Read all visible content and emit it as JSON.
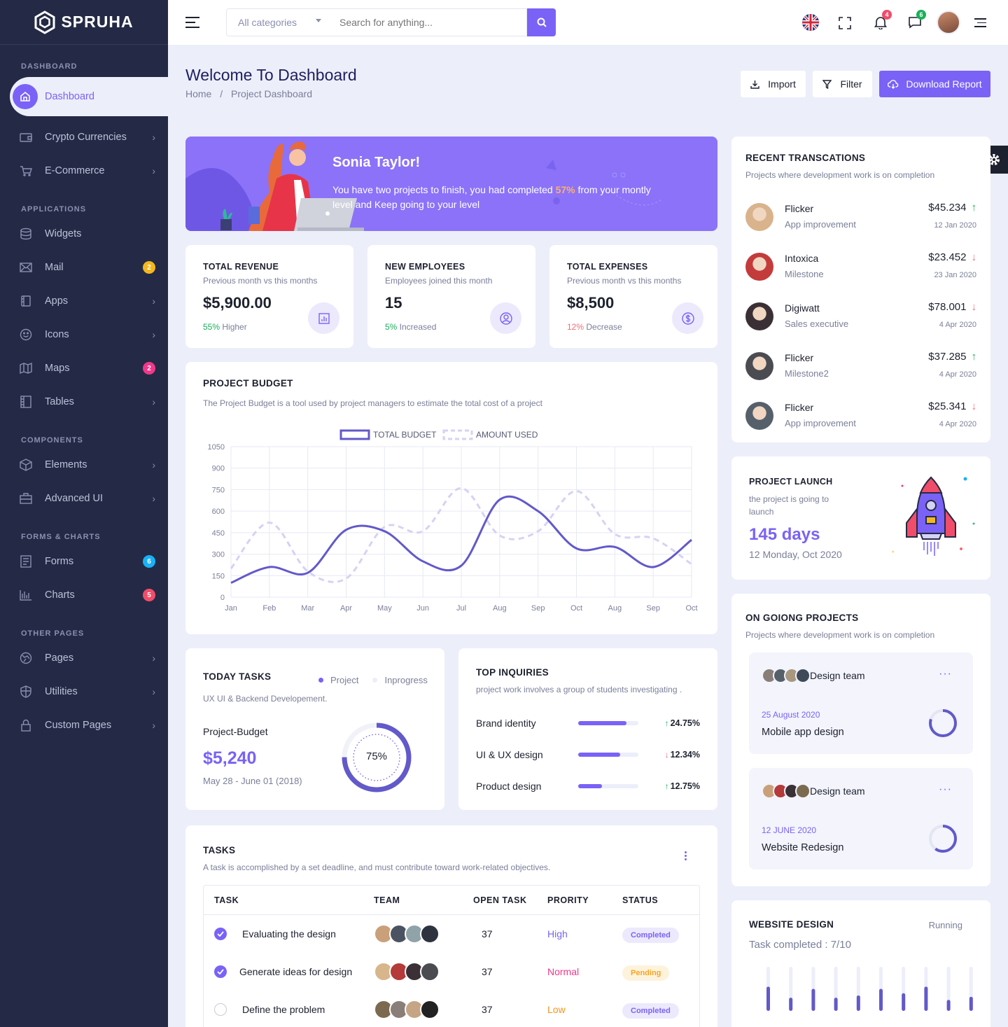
{
  "brand": {
    "name": "SPRUHA"
  },
  "sidebar": {
    "sections": [
      {
        "title": "DASHBOARD",
        "items": [
          {
            "label": "Dashboard",
            "icon": "home-icon",
            "active": true
          }
        ]
      },
      {
        "title": "",
        "items": [
          {
            "label": "Crypto Currencies",
            "icon": "wallet-icon",
            "chevron": true
          },
          {
            "label": "E-Commerce",
            "icon": "cart-icon",
            "chevron": true
          }
        ]
      },
      {
        "title": "APPLICATIONS",
        "items": [
          {
            "label": "Widgets",
            "icon": "database-icon"
          },
          {
            "label": "Mail",
            "icon": "mail-icon",
            "badge": "2",
            "badge_color": "#f5b71f"
          },
          {
            "label": "Apps",
            "icon": "apps-icon",
            "chevron": true
          },
          {
            "label": "Icons",
            "icon": "smile-icon",
            "chevron": true
          },
          {
            "label": "Maps",
            "icon": "map-icon",
            "badge": "2",
            "badge_color": "#f1388b"
          },
          {
            "label": "Tables",
            "icon": "table-icon",
            "chevron": true
          }
        ]
      },
      {
        "title": "COMPONENTS",
        "items": [
          {
            "label": "Elements",
            "icon": "box-icon",
            "chevron": true
          },
          {
            "label": "Advanced UI",
            "icon": "briefcase-icon",
            "chevron": true
          }
        ]
      },
      {
        "title": "FORMS & CHARTS",
        "items": [
          {
            "label": "Forms",
            "icon": "form-icon",
            "badge": "6",
            "badge_color": "#19b1f7"
          },
          {
            "label": "Charts",
            "icon": "chart-icon",
            "badge": "5",
            "badge_color": "#f04d6a"
          }
        ]
      },
      {
        "title": "OTHER PAGES",
        "items": [
          {
            "label": "Pages",
            "icon": "pages-icon",
            "chevron": true
          },
          {
            "label": "Utilities",
            "icon": "shield-icon",
            "chevron": true
          },
          {
            "label": "Custom Pages",
            "icon": "lock-icon",
            "chevron": true
          }
        ]
      }
    ]
  },
  "header": {
    "category_placeholder": "All categories",
    "search_placeholder": "Search for anything...",
    "notif_count": "4",
    "msg_count": "6"
  },
  "page": {
    "title": "Welcome To Dashboard",
    "breadcrumb_home": "Home",
    "breadcrumb_current": "Project Dashboard",
    "import_label": "Import",
    "filter_label": "Filter",
    "download_label": "Download Report"
  },
  "welcome": {
    "name": "Sonia Taylor!",
    "text_a": "You have two projects to finish, you had completed ",
    "percent": "57%",
    "text_b": " from your montly",
    "text_c": "level and Keep going to your level"
  },
  "stats": [
    {
      "title": "TOTAL REVENUE",
      "sub": "Previous month vs this months",
      "value": "$5,900.00",
      "change": "55%",
      "change_label": " Higher",
      "change_color": "#19b159",
      "icon": "bar-chart-icon"
    },
    {
      "title": "NEW EMPLOYEES",
      "sub": "Employees joined this month",
      "value": "15",
      "change": "5%",
      "change_label": " Increased",
      "change_color": "#19b159",
      "icon": "user-circle-icon"
    },
    {
      "title": "TOTAL EXPENSES",
      "sub": "Previous month vs this months",
      "value": "$8,500",
      "change": "12%",
      "change_label": " Decrease",
      "change_color": "#f16d75",
      "icon": "dollar-icon"
    }
  ],
  "budget": {
    "title": "PROJECT BUDGET",
    "sub": "The Project Budget is a tool used by project managers to estimate the total cost of a project"
  },
  "chart_data": {
    "type": "line",
    "categories": [
      "Jan",
      "Feb",
      "Mar",
      "Apr",
      "May",
      "Jun",
      "Jul",
      "Aug",
      "Sep",
      "Oct",
      "Aug",
      "Sep",
      "Oct"
    ],
    "series": [
      {
        "name": "TOTAL BUDGET",
        "values": [
          100,
          210,
          170,
          470,
          460,
          250,
          220,
          680,
          600,
          340,
          350,
          210,
          400
        ],
        "color": "#6259ca"
      },
      {
        "name": "AMOUNT USED",
        "values": [
          200,
          520,
          180,
          130,
          490,
          460,
          760,
          430,
          460,
          740,
          440,
          410,
          230
        ],
        "color": "#d6d2f4"
      }
    ],
    "ylim": [
      0,
      1050
    ],
    "yticks": [
      "1050",
      "900",
      "750",
      "600",
      "450",
      "300",
      "150",
      "0"
    ],
    "grid": true,
    "legend": "top-center"
  },
  "tasks_today": {
    "title": "TODAY TASKS",
    "legend_a": "Project",
    "legend_b": "Inprogress",
    "sub": "UX UI & Backend Developement.",
    "budget_label": "Project-Budget",
    "budget_value": "$5,240",
    "dates": "May 28 - June 01 (2018)",
    "percent_label": "75%",
    "percent": 0.75
  },
  "inquiries": {
    "title": "TOP INQUIRIES",
    "sub": "project work involves a group of students investigating .",
    "items": [
      {
        "label": "Brand identity",
        "value": "24.75%",
        "dir": "up",
        "fill": 0.8
      },
      {
        "label": "UI & UX design",
        "value": "12.34%",
        "dir": "down",
        "fill": 0.7
      },
      {
        "label": "Product design",
        "value": "12.75%",
        "dir": "up",
        "fill": 0.4
      }
    ]
  },
  "tasks": {
    "title": "TASKS",
    "sub": "A task is accomplished by a set deadline, and must contribute toward work-related objectives.",
    "cols": [
      "TASK",
      "TEAM",
      "OPEN TASK",
      "PRORITY",
      "STATUS"
    ],
    "rows": [
      {
        "task": "Evaluating the design",
        "done": true,
        "open": "37",
        "priority": "High",
        "priority_color": "#7a62f7",
        "status": "Completed",
        "status_color": "#7a62f7",
        "status_bg": "#ece9fd"
      },
      {
        "task": "Generate ideas for design",
        "done": true,
        "open": "37",
        "priority": "Normal",
        "priority_color": "#f1388b",
        "status": "Pending",
        "status_color": "#f5a623",
        "status_bg": "#fdf3dc"
      },
      {
        "task": "Define the problem",
        "done": false,
        "open": "37",
        "priority": "Low",
        "priority_color": "#f7941d",
        "status": "Completed",
        "status_color": "#7a62f7",
        "status_bg": "#ece9fd"
      }
    ]
  },
  "transactions": {
    "title": "RECENT TRANSCATIONS",
    "sub": "Projects where development work is on completion",
    "items": [
      {
        "name": "Flicker",
        "desc": "App improvement",
        "amount": "$45.234",
        "date": "12 Jan 2020",
        "dir": "up",
        "avatar": "#d9b38c"
      },
      {
        "name": "Intoxica",
        "desc": "Milestone",
        "amount": "$23.452",
        "date": "23 Jan 2020",
        "dir": "down",
        "avatar": "#c43b3b"
      },
      {
        "name": "Digiwatt",
        "desc": "Sales executive",
        "amount": "$78.001",
        "date": "4 Apr 2020",
        "dir": "down",
        "avatar": "#3a2f35"
      },
      {
        "name": "Flicker",
        "desc": "Milestone2",
        "amount": "$37.285",
        "date": "4 Apr 2020",
        "dir": "up",
        "avatar": "#4b4b52"
      },
      {
        "name": "Flicker",
        "desc": "App improvement",
        "amount": "$25.341",
        "date": "4 Apr 2020",
        "dir": "down",
        "avatar": "#56606b"
      }
    ]
  },
  "launch": {
    "title": "PROJECT LAUNCH",
    "sub_a": "the project is going to",
    "sub_b": "launch",
    "days": "145 days",
    "date": "12 Monday, Oct 2020"
  },
  "ongoing": {
    "title": "ON GOIONG PROJECTS",
    "sub": "Projects where development work is on completion",
    "items": [
      {
        "team": "Design team",
        "date": "25 August 2020",
        "name": "Mobile app design",
        "progress": 0.8
      },
      {
        "team": "Design team",
        "date": "12 JUNE 2020",
        "name": "Website Redesign",
        "progress": 0.6
      }
    ]
  },
  "website": {
    "title": "WEBSITE DESIGN",
    "status": "Running",
    "completed": "Task completed : 7/10",
    "bars": [
      0.55,
      0.3,
      0.5,
      0.3,
      0.35,
      0.5,
      0.4,
      0.55,
      0.25,
      0.32
    ]
  }
}
